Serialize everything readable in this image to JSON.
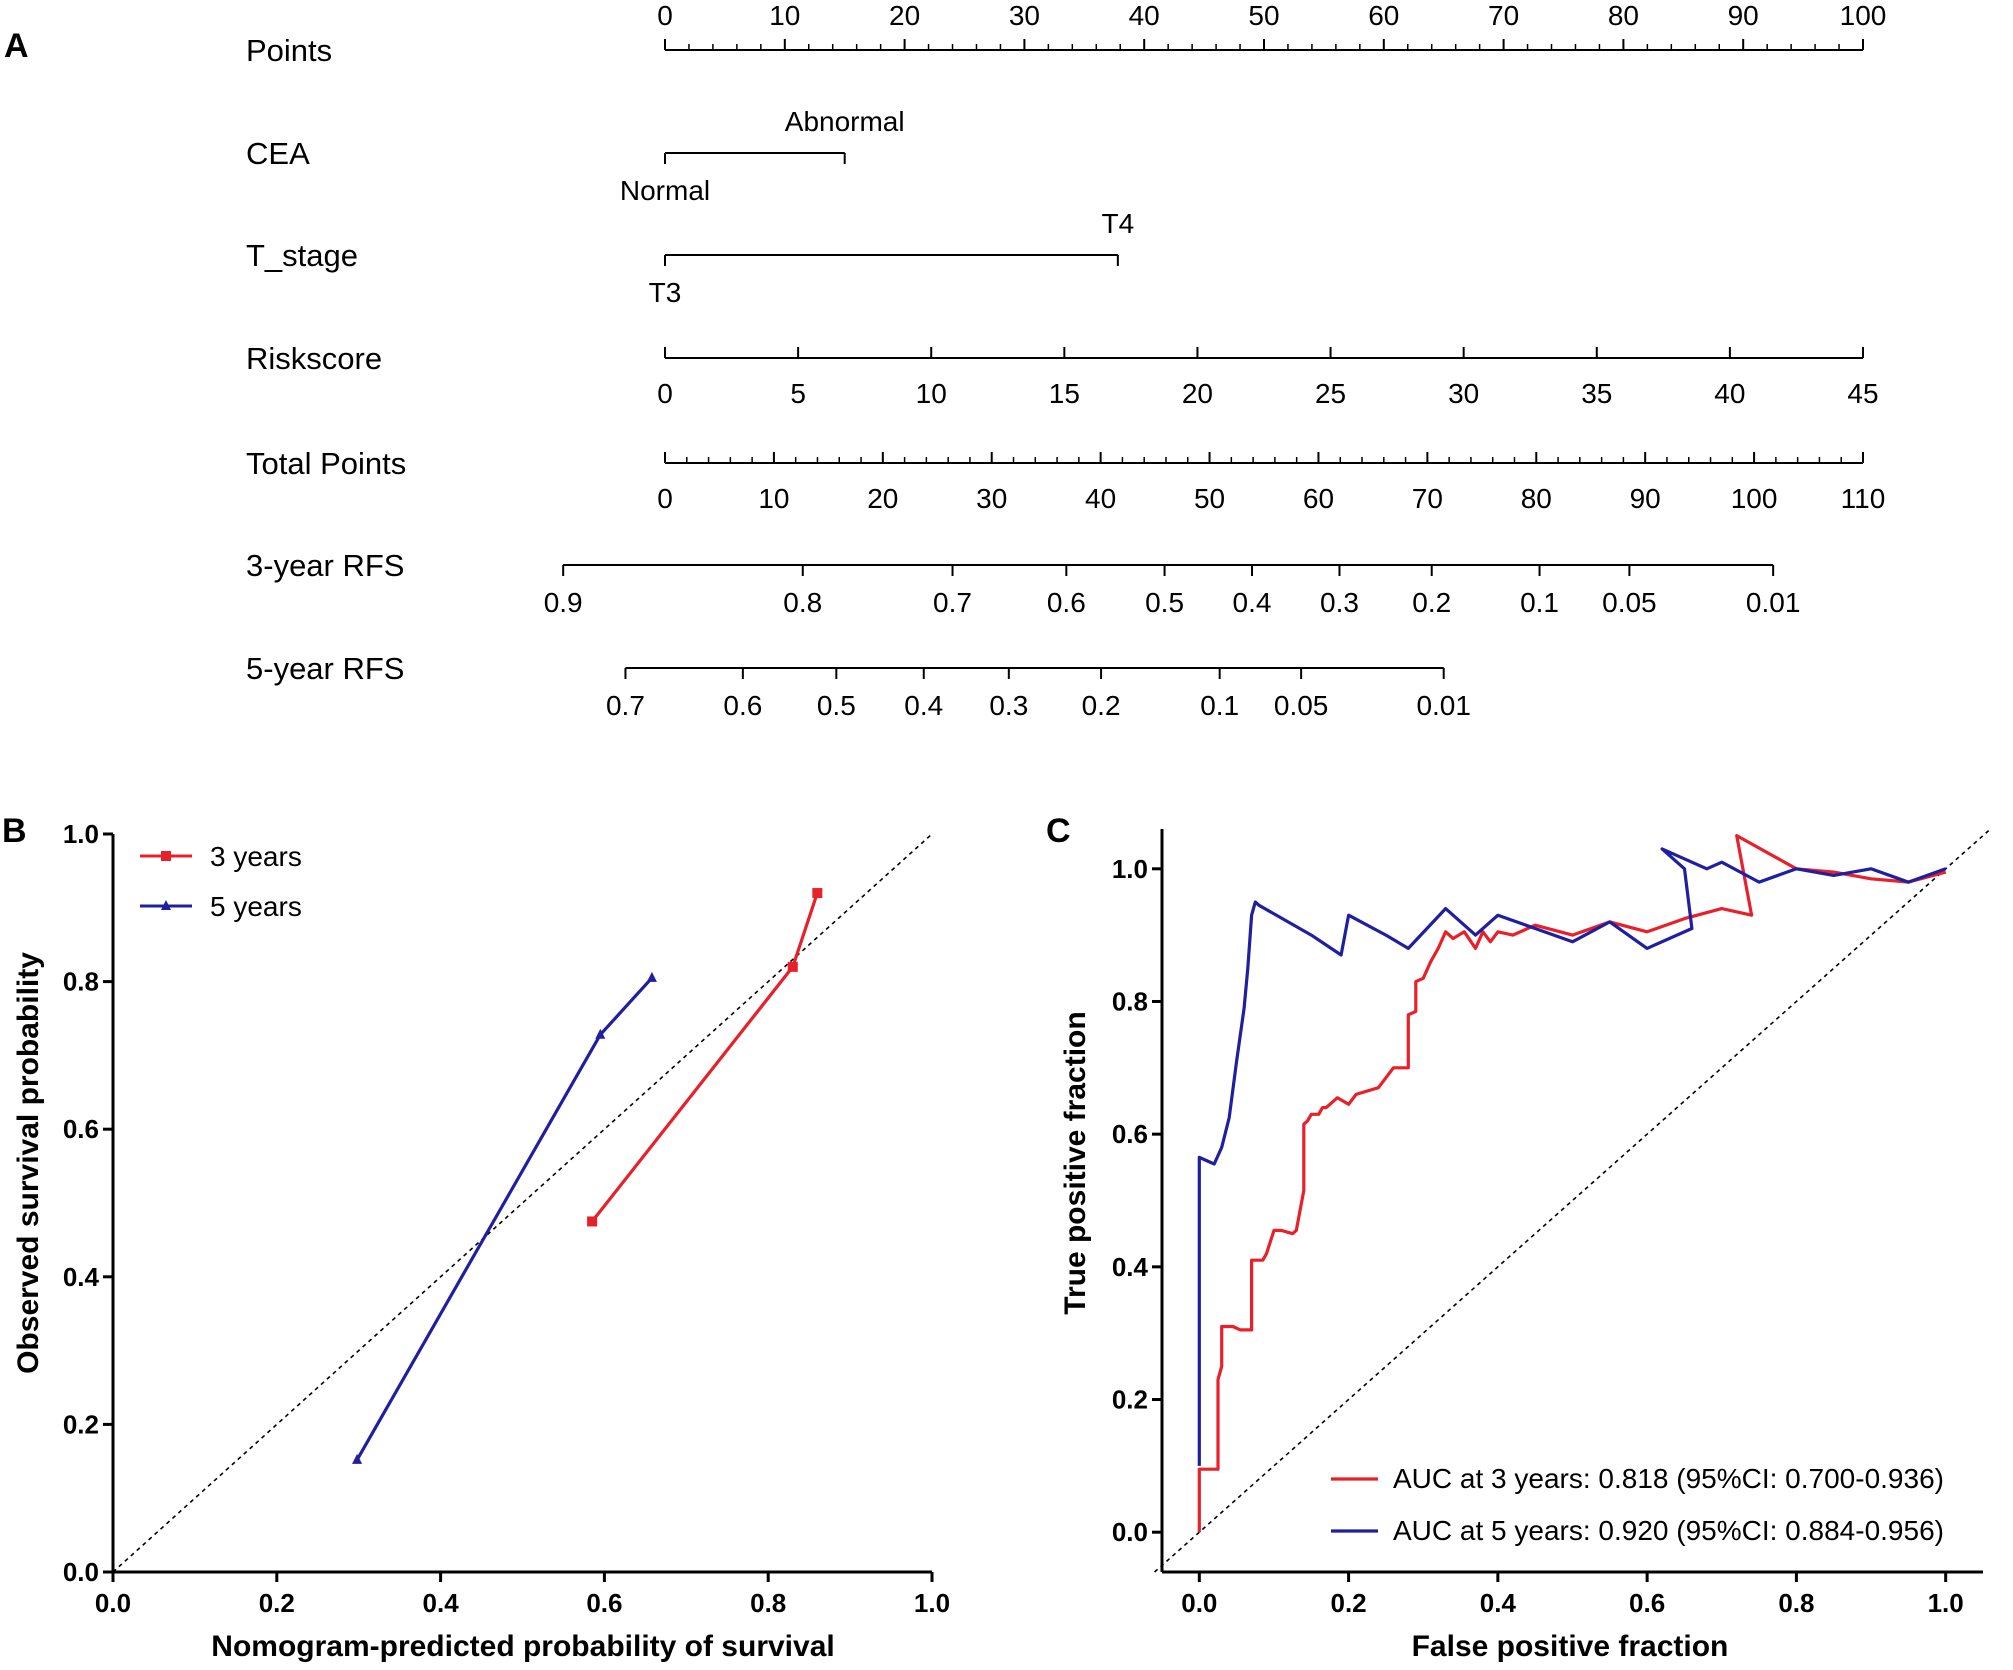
{
  "colors": {
    "red": "#e8202a",
    "blue": "#1f1fa0",
    "black": "#000000"
  },
  "panel_a": {
    "label": "A",
    "chart_data": {
      "type": "nomogram",
      "rows": [
        {
          "name": "Points",
          "kind": "scale_above",
          "ticks": [
            {
              "v": 0,
              "label": "0"
            },
            {
              "v": 10,
              "label": "10"
            },
            {
              "v": 20,
              "label": "20"
            },
            {
              "v": 30,
              "label": "30"
            },
            {
              "v": 40,
              "label": "40"
            },
            {
              "v": 50,
              "label": "50"
            },
            {
              "v": 60,
              "label": "60"
            },
            {
              "v": 70,
              "label": "70"
            },
            {
              "v": 80,
              "label": "80"
            },
            {
              "v": 90,
              "label": "90"
            },
            {
              "v": 100,
              "label": "100"
            }
          ],
          "minor_step": 2,
          "range": [
            0,
            100
          ]
        },
        {
          "name": "CEA",
          "kind": "category",
          "levels": [
            {
              "label": "Normal",
              "points": 0,
              "pos": "below"
            },
            {
              "label": "Abnormal",
              "points": 15,
              "pos": "above"
            }
          ]
        },
        {
          "name": "T_stage",
          "kind": "category",
          "levels": [
            {
              "label": "T3",
              "points": 0,
              "pos": "below"
            },
            {
              "label": "T4",
              "points": 37.8,
              "pos": "above"
            }
          ]
        },
        {
          "name": "Riskscore",
          "kind": "scale_below",
          "ticks": [
            {
              "v": 0,
              "label": "0"
            },
            {
              "v": 5,
              "label": "5"
            },
            {
              "v": 10,
              "label": "10"
            },
            {
              "v": 15,
              "label": "15"
            },
            {
              "v": 20,
              "label": "20"
            },
            {
              "v": 25,
              "label": "25"
            },
            {
              "v": 30,
              "label": "30"
            },
            {
              "v": 35,
              "label": "35"
            },
            {
              "v": 40,
              "label": "40"
            },
            {
              "v": 45,
              "label": "45"
            }
          ],
          "range": [
            0,
            45
          ]
        },
        {
          "name": "Total Points",
          "kind": "scale_below",
          "ticks": [
            {
              "v": 0,
              "label": "0"
            },
            {
              "v": 10,
              "label": "10"
            },
            {
              "v": 20,
              "label": "20"
            },
            {
              "v": 30,
              "label": "30"
            },
            {
              "v": 40,
              "label": "40"
            },
            {
              "v": 50,
              "label": "50"
            },
            {
              "v": 60,
              "label": "60"
            },
            {
              "v": 70,
              "label": "70"
            },
            {
              "v": 80,
              "label": "80"
            },
            {
              "v": 90,
              "label": "90"
            },
            {
              "v": 100,
              "label": "100"
            },
            {
              "v": 110,
              "label": "110"
            }
          ],
          "minor_step": 2,
          "range": [
            0,
            110
          ]
        },
        {
          "name": "3-year RFS",
          "kind": "prob",
          "ticks": [
            {
              "v": -8.5,
              "label": "0.9"
            },
            {
              "v": 11.5,
              "label": "0.8"
            },
            {
              "v": 24,
              "label": "0.7"
            },
            {
              "v": 33.5,
              "label": "0.6"
            },
            {
              "v": 41.7,
              "label": "0.5"
            },
            {
              "v": 49,
              "label": "0.4"
            },
            {
              "v": 56.3,
              "label": "0.3"
            },
            {
              "v": 64,
              "label": "0.2"
            },
            {
              "v": 73,
              "label": "0.1"
            },
            {
              "v": 80.5,
              "label": "0.05"
            },
            {
              "v": 92.5,
              "label": "0.01"
            }
          ]
        },
        {
          "name": "5-year RFS",
          "kind": "prob",
          "ticks": [
            {
              "v": -3.3,
              "label": "0.7"
            },
            {
              "v": 6.5,
              "label": "0.6"
            },
            {
              "v": 14.3,
              "label": "0.5"
            },
            {
              "v": 21.6,
              "label": "0.4"
            },
            {
              "v": 28.7,
              "label": "0.3"
            },
            {
              "v": 36.4,
              "label": "0.2"
            },
            {
              "v": 46.3,
              "label": "0.1"
            },
            {
              "v": 53.1,
              "label": "0.05"
            },
            {
              "v": 65,
              "label": "0.01"
            }
          ]
        }
      ]
    }
  },
  "panel_b": {
    "label": "B",
    "chart_data": {
      "type": "line",
      "xlabel": "Nomogram-predicted probability of survival",
      "ylabel": "Observed survival probability",
      "xlim": [
        0,
        1
      ],
      "ylim": [
        0,
        1
      ],
      "xticks": [
        "0.0",
        "0.2",
        "0.4",
        "0.6",
        "0.8",
        "1.0"
      ],
      "yticks": [
        "0.0",
        "0.2",
        "0.4",
        "0.6",
        "0.8",
        "1.0"
      ],
      "diagonal": true,
      "legend_position": "top-left",
      "series": [
        {
          "name": "3 years",
          "color": "red",
          "marker": "square",
          "x": [
            0.585,
            0.83,
            0.86
          ],
          "y": [
            0.475,
            0.82,
            0.92
          ]
        },
        {
          "name": "5 years",
          "color": "blue",
          "marker": "triangle",
          "x": [
            0.298,
            0.595,
            0.658
          ],
          "y": [
            0.152,
            0.728,
            0.805
          ]
        }
      ]
    }
  },
  "panel_c": {
    "label": "C",
    "chart_data": {
      "type": "line",
      "xlabel": "False positive fraction",
      "ylabel": "True positive fraction",
      "xlim": [
        -0.05,
        1.05
      ],
      "ylim": [
        -0.06,
        1.06
      ],
      "xticks": [
        "0.0",
        "0.2",
        "0.4",
        "0.6",
        "0.8",
        "1.0"
      ],
      "yticks": [
        "0.0",
        "0.2",
        "0.4",
        "0.6",
        "0.8",
        "1.0"
      ],
      "diagonal": true,
      "legend_position": "bottom-right",
      "series": [
        {
          "name": "AUC at 3 years: 0.818 (95%CI: 0.700-0.936)",
          "color": "red",
          "x": [
            0,
            0,
            0.025,
            0.025,
            0.03,
            0.03,
            0.045,
            0.055,
            0.07,
            0.07,
            0.085,
            0.09,
            0.1,
            0.11,
            0.125,
            0.13,
            0.14,
            0.14,
            0.145,
            0.15,
            0.16,
            0.165,
            0.17,
            0.175,
            0.185,
            0.2,
            0.21,
            0.225,
            0.24,
            0.26,
            0.28,
            0.28,
            0.29,
            0.29,
            0.3,
            0.31,
            0.32,
            0.33,
            0.34,
            0.355,
            0.37,
            0.38,
            0.39,
            0.4,
            0.42,
            0.45,
            0.5,
            0.55,
            0.6,
            0.65,
            0.7,
            0.74,
            0.72,
            0.8,
            0.85,
            0.9,
            0.95,
            1.0
          ],
          "y": [
            0,
            0.095,
            0.095,
            0.23,
            0.25,
            0.31,
            0.31,
            0.305,
            0.305,
            0.41,
            0.41,
            0.42,
            0.455,
            0.455,
            0.45,
            0.455,
            0.515,
            0.615,
            0.62,
            0.63,
            0.63,
            0.64,
            0.64,
            0.645,
            0.655,
            0.645,
            0.66,
            0.665,
            0.67,
            0.7,
            0.7,
            0.78,
            0.785,
            0.83,
            0.835,
            0.86,
            0.88,
            0.905,
            0.895,
            0.905,
            0.88,
            0.905,
            0.89,
            0.905,
            0.9,
            0.915,
            0.9,
            0.92,
            0.905,
            0.925,
            0.94,
            0.93,
            1.05,
            1.0,
            0.995,
            0.985,
            0.98,
            0.995
          ]
        },
        {
          "name": "AUC at 5 years: 0.920 (95%CI: 0.884-0.956)",
          "color": "blue",
          "x": [
            0,
            0,
            0.02,
            0.03,
            0.04,
            0.05,
            0.06,
            0.065,
            0.07,
            0.075,
            0.08,
            0.15,
            0.19,
            0.2,
            0.25,
            0.28,
            0.33,
            0.37,
            0.4,
            0.45,
            0.5,
            0.55,
            0.6,
            0.66,
            0.65,
            0.62,
            0.68,
            0.7,
            0.75,
            0.8,
            0.85,
            0.9,
            0.95,
            1.0
          ],
          "y": [
            0.1,
            0.565,
            0.555,
            0.58,
            0.625,
            0.71,
            0.79,
            0.85,
            0.93,
            0.95,
            0.945,
            0.9,
            0.87,
            0.93,
            0.9,
            0.88,
            0.94,
            0.9,
            0.93,
            0.91,
            0.89,
            0.92,
            0.88,
            0.91,
            1.0,
            1.03,
            1.0,
            1.01,
            0.98,
            1.0,
            0.99,
            1.0,
            0.98,
            1.0
          ]
        }
      ]
    }
  }
}
